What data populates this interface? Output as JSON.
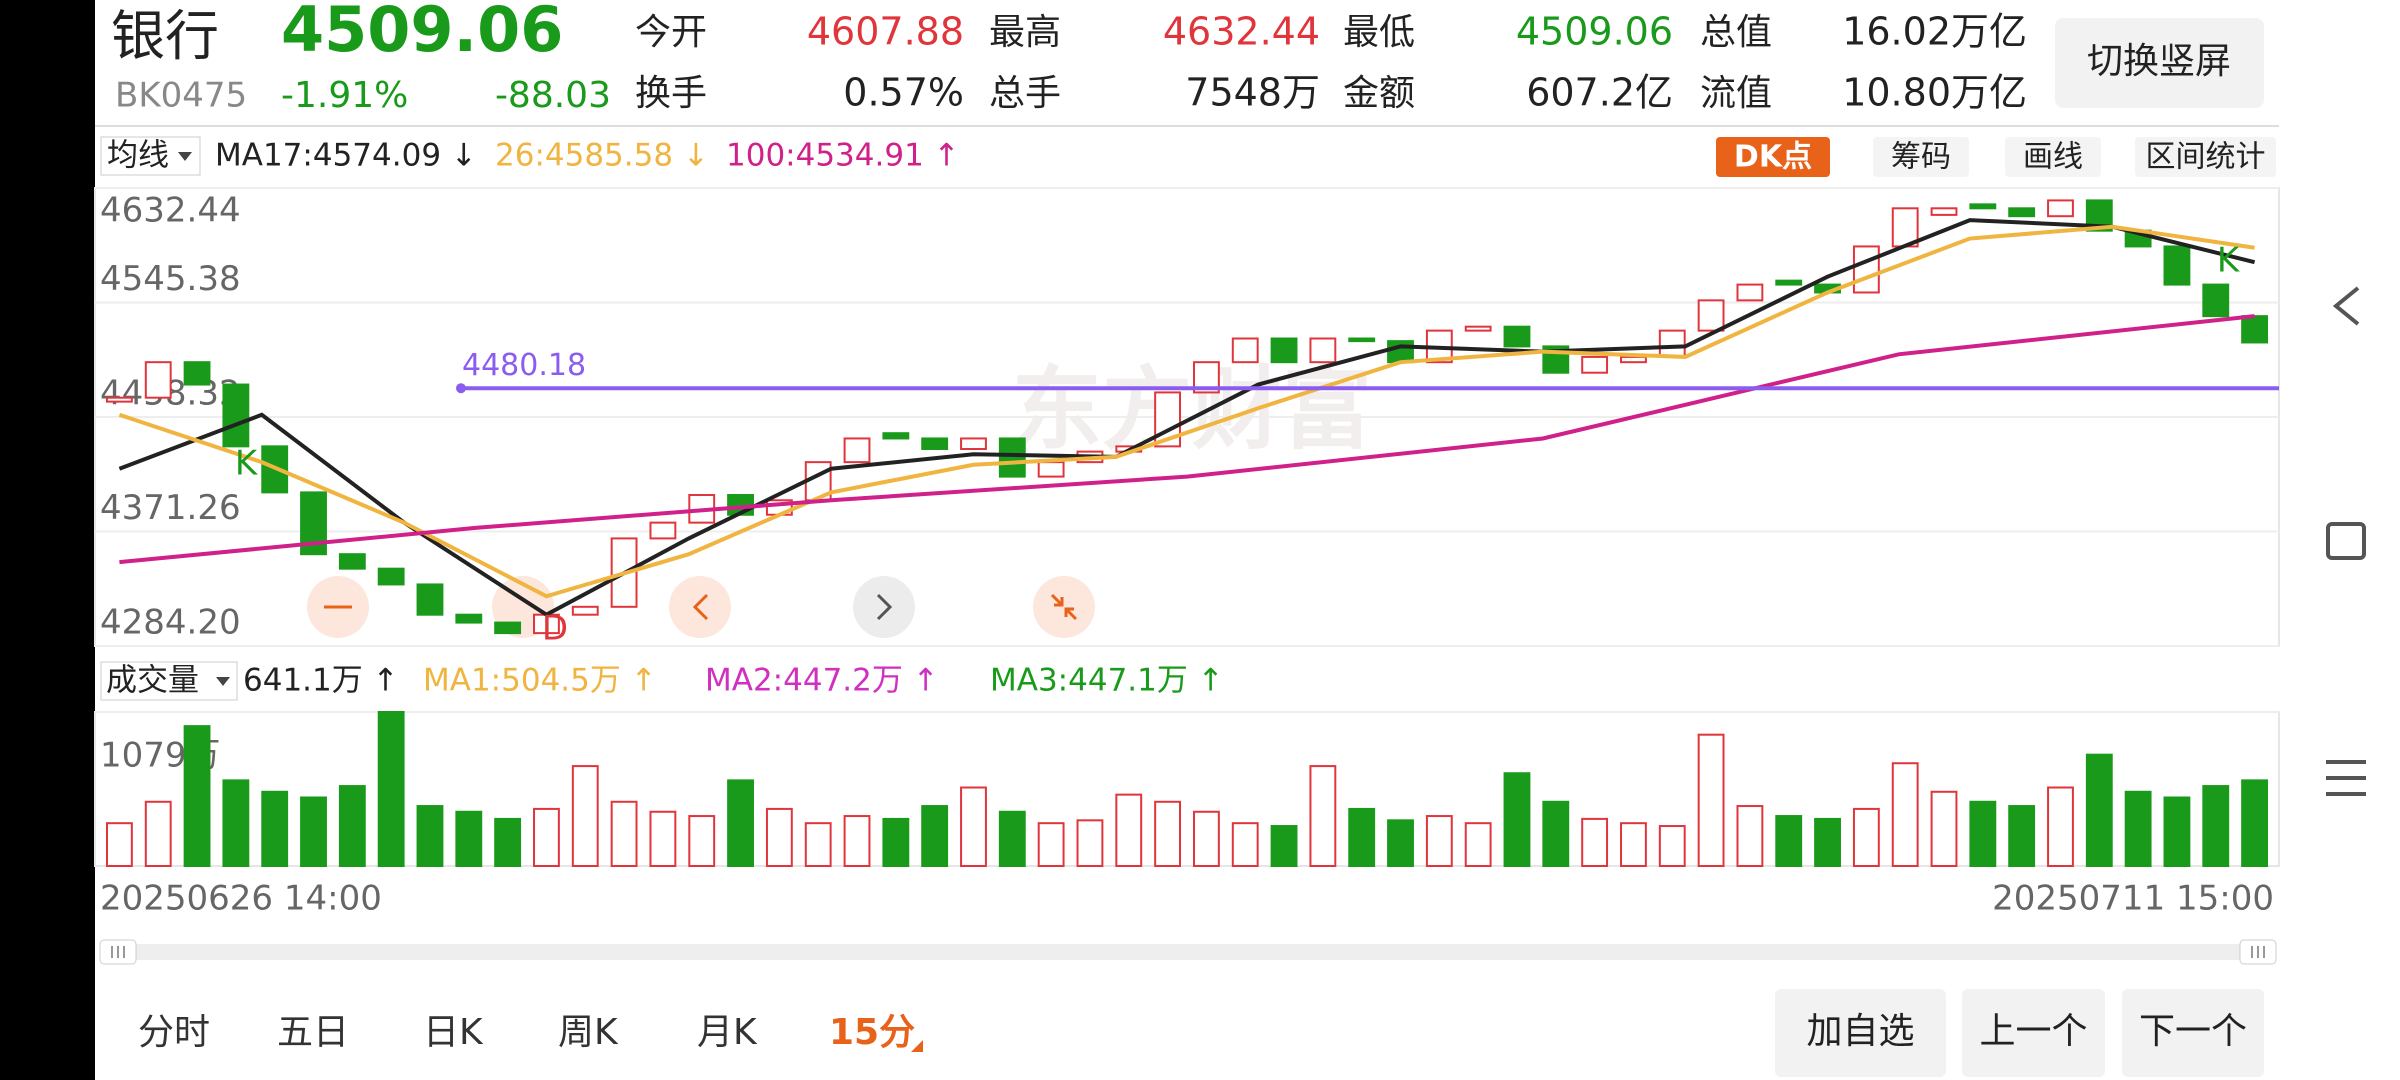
{
  "header": {
    "name": "银行",
    "price": "4509.06",
    "code": "BK0475",
    "change_pct": "-1.91%",
    "change": "-88.03",
    "stats": [
      {
        "label": "今开",
        "value": "4607.88",
        "color": "#e0353b"
      },
      {
        "label": "最高",
        "value": "4632.44",
        "color": "#e0353b"
      },
      {
        "label": "最低",
        "value": "4509.06",
        "color": "#1a9a1a"
      },
      {
        "label": "总值",
        "value": "16.02万亿",
        "color": "#222222"
      },
      {
        "label": "换手",
        "value": "0.57%",
        "color": "#222222"
      },
      {
        "label": "总手",
        "value": "7548万",
        "color": "#222222"
      },
      {
        "label": "金额",
        "value": "607.2亿",
        "color": "#222222"
      },
      {
        "label": "流值",
        "value": "10.80万亿",
        "color": "#222222"
      }
    ],
    "toggle_button": "切换竖屏"
  },
  "toolbar": {
    "selector": "均线",
    "buttons": [
      "DK点",
      "筹码",
      "画线",
      "区间统计"
    ]
  },
  "chart_data": [
    {
      "type": "candlestick",
      "open": [
        4470,
        4473,
        4500,
        4483,
        4436,
        4401,
        4354,
        4343,
        4331,
        4308,
        4302,
        4294,
        4308,
        4314,
        4366,
        4378,
        4399,
        4384,
        4395,
        4424,
        4446,
        4442,
        4434,
        4442,
        4413,
        4424,
        4432,
        4436,
        4477,
        4500,
        4518,
        4500,
        4518,
        4516,
        4500,
        4524,
        4527,
        4512,
        4492,
        4500,
        4504,
        4524,
        4547,
        4562,
        4559,
        4553,
        4588,
        4612,
        4620,
        4617,
        4611,
        4623,
        4600,
        4588,
        4559,
        4535
      ],
      "close": [
        4473,
        4500,
        4483,
        4436,
        4401,
        4354,
        4343,
        4331,
        4308,
        4302,
        4294,
        4308,
        4314,
        4366,
        4378,
        4399,
        4384,
        4395,
        4424,
        4442,
        4442,
        4434,
        4442,
        4413,
        4424,
        4432,
        4436,
        4477,
        4500,
        4518,
        4500,
        4518,
        4516,
        4500,
        4524,
        4527,
        4512,
        4492,
        4504,
        4504,
        4524,
        4547,
        4559,
        4559,
        4553,
        4588,
        4617,
        4617,
        4617,
        4611,
        4623,
        4600,
        4588,
        4559,
        4535,
        4515
      ],
      "up_color": "#e0353b",
      "down_color": "#1a9a1a",
      "series": [
        {
          "name": "MA17:4574.09 ↓",
          "color": "#222222",
          "values": [
            4419,
            4460,
            4378,
            4308,
            4366,
            4419,
            4430,
            4428,
            4483,
            4512,
            4508,
            4512,
            4565,
            4608,
            4603,
            4576
          ]
        },
        {
          "name": "26:4585.58 ↓",
          "color": "#f0b440",
          "values": [
            4460,
            4424,
            4378,
            4322,
            4354,
            4401,
            4422,
            4428,
            4465,
            4500,
            4508,
            4504,
            4553,
            4594,
            4603,
            4587
          ]
        },
        {
          "name": "100:4534.91 ↑",
          "color": "#d0208a",
          "values": [
            4348,
            4374,
            4395,
            4413,
            4442,
            4506,
            4535
          ]
        }
      ],
      "ylim": [
        4284.2,
        4632.44
      ],
      "yticks": [
        4632.44,
        4545.38,
        4458.32,
        4371.26,
        {
          "value": 4284.2,
          "label": "4284.20"
        }
      ],
      "reference_line": {
        "value": 4480.18,
        "color": "#8a5cf0"
      },
      "markers": [
        "K",
        "D",
        "K"
      ],
      "watermark": "东方财富",
      "x_labels": [
        "20250626 14:00",
        "20250711 15:00"
      ]
    },
    {
      "type": "bar",
      "selector": "成交量",
      "values": [
        300,
        450,
        980,
        600,
        520,
        480,
        560,
        1079,
        420,
        380,
        330,
        400,
        700,
        450,
        380,
        350,
        600,
        400,
        300,
        350,
        330,
        420,
        550,
        380,
        300,
        320,
        500,
        450,
        380,
        300,
        280,
        700,
        400,
        320,
        350,
        300,
        650,
        450,
        330,
        300,
        280,
        920,
        420,
        350,
        330,
        400,
        720,
        520,
        450,
        420,
        550,
        780,
        520,
        480,
        560,
        600
      ],
      "ylim": [
        0,
        1079
      ],
      "yticks": [
        {
          "value": 1079,
          "label": "1079万"
        }
      ],
      "legend": [
        {
          "text": "641.1万 ↑",
          "color": "#222222"
        },
        {
          "text": "MA1:504.5万 ↑",
          "color": "#f0b440"
        },
        {
          "text": "MA2:447.2万 ↑",
          "color": "#d030c0"
        },
        {
          "text": "MA3:447.1万 ↑",
          "color": "#1a9a1a"
        }
      ]
    }
  ],
  "tabs": [
    "分时",
    "五日",
    "日K",
    "周K",
    "月K",
    "15分"
  ],
  "active_tab": 5,
  "actions": [
    "加自选",
    "上一个",
    "下一个"
  ]
}
